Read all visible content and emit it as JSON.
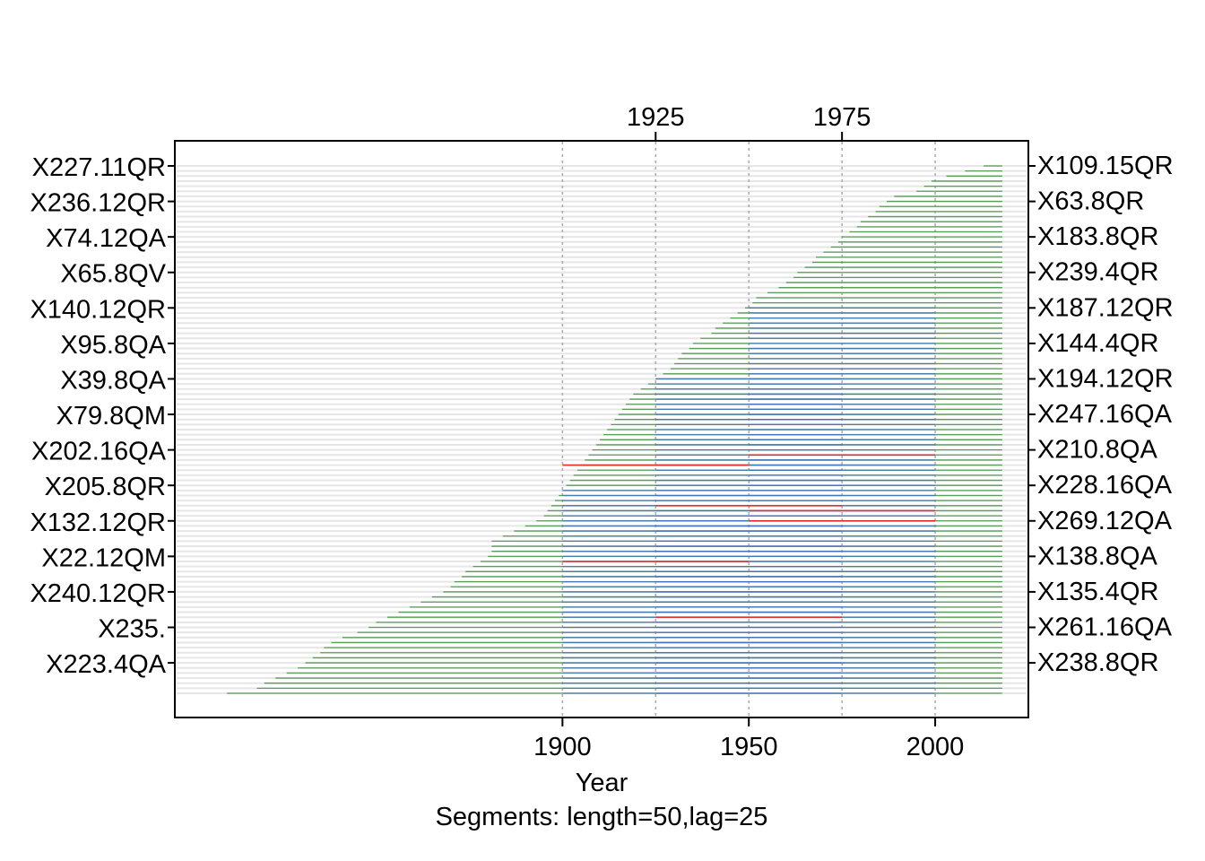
{
  "chart_data": {
    "type": "segment-plot",
    "xlabel": "Year",
    "subtitle": "Segments: length=50,lag=25",
    "bottom_ticks": [
      1900,
      1950,
      2000
    ],
    "top_ticks": [
      1925,
      1975
    ],
    "xlim": [
      1796,
      2025
    ],
    "colors": {
      "full_record": "#5a9e5a",
      "segment": "#4472c4",
      "flagged": "#e03030",
      "row_band": "#e6e6e6",
      "grid": "#aaaaaa"
    },
    "left_labels": [
      "X227.11QR",
      "X236.12QR",
      "X74.12QA",
      "X65.8QV",
      "X140.12QR",
      "X95.8QA",
      "X39.8QA",
      "X79.8QM",
      "X202.16QA",
      "X205.8QR",
      "X132.12QR",
      "X22.12QM",
      "X240.12QR",
      "X235.",
      "X223.4QA"
    ],
    "right_labels": [
      "X109.15QR",
      "X63.8QR",
      "X183.8QR",
      "X239.4QR",
      "X187.12QR",
      "X144.4QR",
      "X194.12QR",
      "X247.16QA",
      "X210.8QA",
      "X228.16QA",
      "X269.12QA",
      "X138.8QA",
      "X135.4QR",
      "X261.16QA",
      "X238.8QR"
    ],
    "end_year": 2018,
    "start_years": [
      2013,
      2008,
      2003,
      1999,
      1997,
      1995,
      1989,
      1987,
      1985,
      1984,
      1982,
      1980,
      1979,
      1977,
      1975,
      1974,
      1972,
      1970,
      1968,
      1967,
      1965,
      1963,
      1962,
      1960,
      1958,
      1955,
      1952,
      1951,
      1949,
      1947,
      1945,
      1943,
      1941,
      1940,
      1937,
      1935,
      1934,
      1932,
      1931,
      1930,
      1929,
      1927,
      1925,
      1923,
      1921,
      1919,
      1918,
      1917,
      1916,
      1915,
      1914,
      1913,
      1912,
      1911,
      1910,
      1909,
      1908,
      1907,
      1906,
      1905,
      1904,
      1903,
      1902,
      1901,
      1900,
      1899,
      1898,
      1897,
      1896,
      1895,
      1893,
      1890,
      1887,
      1884,
      1881,
      1881,
      1881,
      1880,
      1878,
      1876,
      1874,
      1873,
      1871,
      1870,
      1868,
      1865,
      1862,
      1859,
      1856,
      1853,
      1850,
      1848,
      1845,
      1841,
      1838,
      1836,
      1835,
      1833,
      1831,
      1829,
      1826,
      1823,
      1820,
      1818,
      1810
    ],
    "flagged": [
      {
        "row": 57,
        "from": 1950,
        "to": 2000
      },
      {
        "row": 59,
        "from": 1900,
        "to": 1950
      },
      {
        "row": 67,
        "from": 1925,
        "to": 1975
      },
      {
        "row": 68,
        "from": 1950,
        "to": 2000
      },
      {
        "row": 70,
        "from": 1950,
        "to": 2000
      },
      {
        "row": 78,
        "from": 1900,
        "to": 1950
      },
      {
        "row": 89,
        "from": 1925,
        "to": 1975
      }
    ]
  }
}
